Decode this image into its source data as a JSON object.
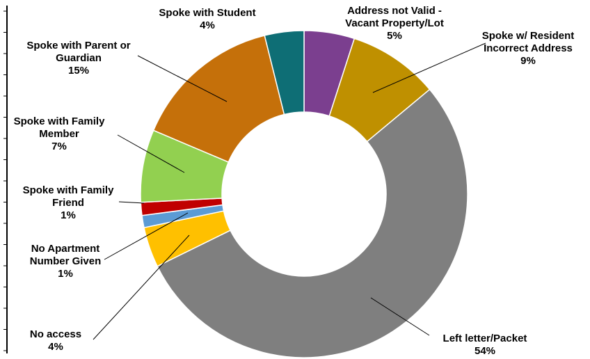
{
  "chart_data": {
    "type": "pie",
    "variant": "donut",
    "title": "",
    "legend": "none",
    "slices": [
      {
        "name": "Address not Valid - Vacant Property/Lot",
        "label_lines": [
          "Address not Valid -",
          "Vacant Property/Lot"
        ],
        "pct_label": "5%",
        "value": 5,
        "color": "#7B3F8F"
      },
      {
        "name": "Spoke w/ Resident Incorrect Address",
        "label_lines": [
          "Spoke w/ Resident",
          "Incorrect Address"
        ],
        "pct_label": "9%",
        "value": 9,
        "color": "#BF9000"
      },
      {
        "name": "Left letter/Packet",
        "label_lines": [
          "Left letter/Packet"
        ],
        "pct_label": "54%",
        "value": 54,
        "color": "#7F7F7F"
      },
      {
        "name": "No access",
        "label_lines": [
          "No access"
        ],
        "pct_label": "4%",
        "value": 4,
        "color": "#FFC000"
      },
      {
        "name": "No Apartment Number Given",
        "label_lines": [
          "No Apartment",
          "Number Given"
        ],
        "pct_label": "1%",
        "value": 1.2,
        "color": "#5B9BD5"
      },
      {
        "name": "Spoke with Family Friend",
        "label_lines": [
          "Spoke with Family",
          "Friend"
        ],
        "pct_label": "1%",
        "value": 1.3,
        "color": "#C00000"
      },
      {
        "name": "Spoke with Family Member",
        "label_lines": [
          "Spoke with Family",
          "Member"
        ],
        "pct_label": "7%",
        "value": 7.2,
        "color": "#92D050"
      },
      {
        "name": "Spoke with Parent or Guardian",
        "label_lines": [
          "Spoke with Parent or",
          "Guardian"
        ],
        "pct_label": "15%",
        "value": 14.8,
        "color": "#C5700A"
      },
      {
        "name": "Spoke with Student",
        "label_lines": [
          "Spoke with Student"
        ],
        "pct_label": "4%",
        "value": 3.9,
        "color": "#0E6E75"
      }
    ]
  }
}
